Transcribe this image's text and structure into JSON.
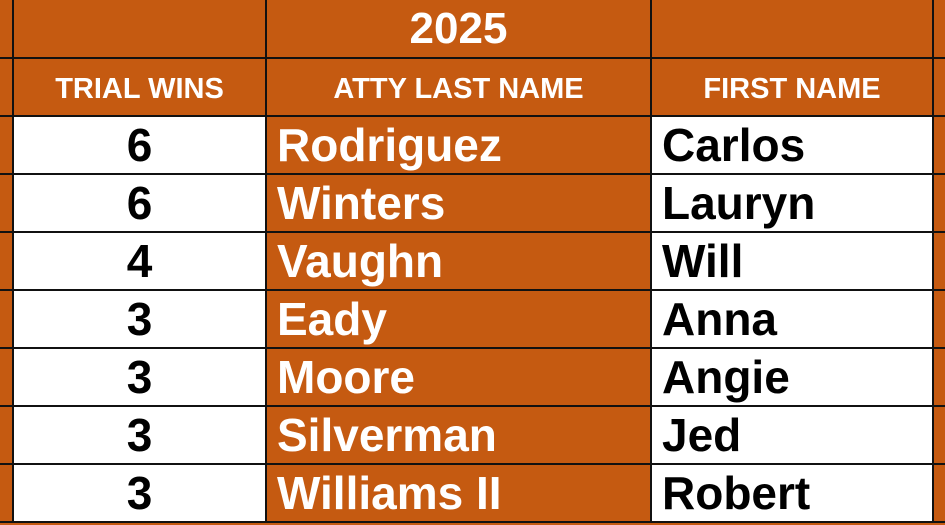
{
  "title": "2025",
  "headers": {
    "wins": "TRIAL WINS",
    "last": "ATTY LAST NAME",
    "first": "FIRST NAME"
  },
  "colors": {
    "accent": "#C55A11",
    "cell": "#FFFFFF"
  },
  "rows": [
    {
      "wins": "6",
      "last": "Rodriguez",
      "first": "Carlos"
    },
    {
      "wins": "6",
      "last": "Winters",
      "first": "Lauryn"
    },
    {
      "wins": "4",
      "last": "Vaughn",
      "first": "Will"
    },
    {
      "wins": "3",
      "last": "Eady",
      "first": "Anna"
    },
    {
      "wins": "3",
      "last": "Moore",
      "first": "Angie"
    },
    {
      "wins": "3",
      "last": "Silverman",
      "first": "Jed"
    },
    {
      "wins": "3",
      "last": "Williams II",
      "first": "Robert"
    }
  ]
}
